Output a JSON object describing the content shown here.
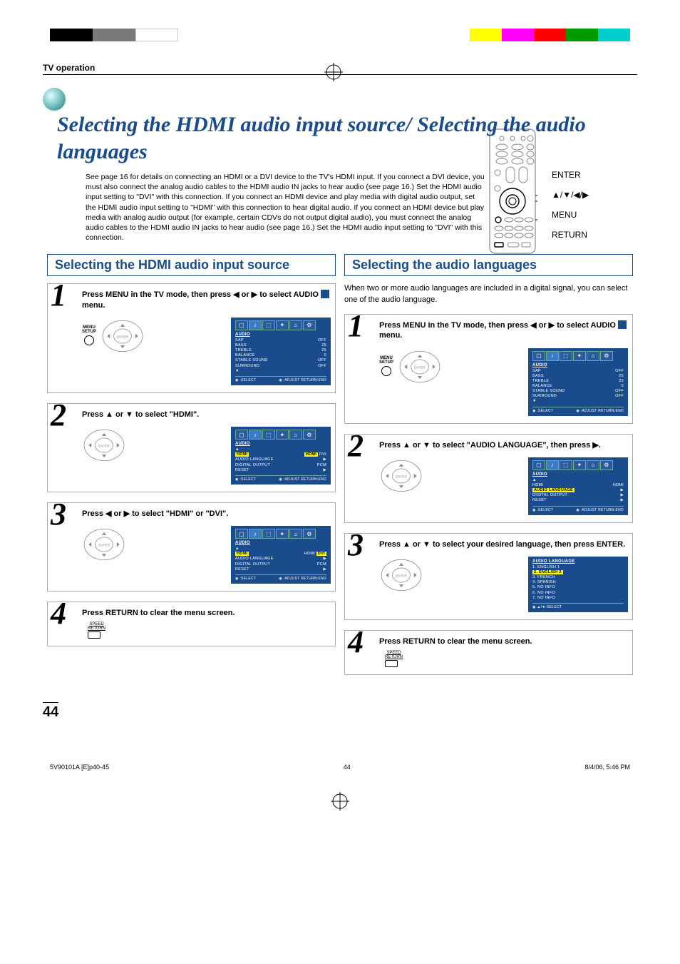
{
  "colors": {
    "accent": "#1a4b8c",
    "highlight": "#ffff00",
    "bar": [
      "#000000",
      "#7a7a7a",
      "#ffffff",
      "#ffffff",
      "#ffffff",
      "#ffffff",
      "#ffff00",
      "#ff00ff",
      "#ff0000",
      "#009900",
      "#00cccc"
    ]
  },
  "header": {
    "section": "TV operation"
  },
  "title": "Selecting the HDMI audio input source/ Selecting the audio languages",
  "intro": "See page 16 for details on connecting an HDMI or a DVI device to the TV's HDMI input. If you connect a DVI device, you must also connect the analog audio cables to the HDMI audio IN jacks to hear audio (see page 16.) Set the HDMI audio input setting to \"DVI\" with this connection. If you connect an HDMI device and play media with digital audio output, set the HDMI audio input setting to \"HDMI\" with this connection to hear digital audio. If you connect an HDMI device but play media with analog audio output (for example, certain CDVs do not output digital audio), you must connect the analog audio cables to the HDMI audio IN jacks to hear audio (see page 16.) Set the HDMI audio input setting to \"DVI\" with this connection.",
  "remote": {
    "labels": [
      "ENTER",
      "▲/▼/◀/▶",
      "MENU",
      "RETURN"
    ]
  },
  "left": {
    "title": "Selecting the HDMI audio input source",
    "steps": [
      {
        "n": "1",
        "text": "Press MENU in the TV mode, then press ◀ or ▶ to select AUDIO 🔊 menu.",
        "osd": {
          "header": "AUDIO",
          "rows": [
            [
              "SAP",
              "OFF"
            ],
            [
              "BASS",
              "25"
            ],
            [
              "TREBLE",
              "25"
            ],
            [
              "BALANCE",
              "0"
            ],
            [
              "STABLE SOUND",
              "OFF"
            ],
            [
              "SURROUND",
              "OFF"
            ],
            [
              "▼",
              ""
            ]
          ],
          "foot": [
            "◉ :SELECT",
            "◉ :ADJUST  RETURN:END"
          ]
        }
      },
      {
        "n": "2",
        "text": "Press ▲ or ▼ to select \"HDMI\".",
        "osd": {
          "header": "AUDIO",
          "rows": [
            [
              "▲",
              ""
            ],
            [
              "HDMI",
              "[HDMI] DVI"
            ],
            [
              "AUDIO LANGUAGE",
              "▶"
            ],
            [
              "DIGITAL OUTPUT",
              "PCM"
            ],
            [
              "",
              ""
            ],
            [
              "RESET",
              "▶"
            ]
          ],
          "foot": [
            "◉ :SELECT",
            "◉ :ADJUST  RETURN:END"
          ],
          "sel_idx": 1
        }
      },
      {
        "n": "3",
        "text": "Press ◀ or ▶ to select \"HDMI\" or \"DVI\".",
        "osd": {
          "header": "AUDIO",
          "rows": [
            [
              "▲",
              ""
            ],
            [
              "HDMI",
              "HDMI [DVI]"
            ],
            [
              "AUDIO LANGUAGE",
              "▶"
            ],
            [
              "DIGITAL OUTPUT",
              "PCM"
            ],
            [
              "",
              ""
            ],
            [
              "RESET",
              "▶"
            ]
          ],
          "foot": [
            "◉ :SELECT",
            "◉ :ADJUST  RETURN:END"
          ],
          "sel_idx": 1,
          "sel_val": "DVI"
        }
      },
      {
        "n": "4",
        "text": "Press RETURN to clear the menu screen.",
        "return_btn": true
      }
    ]
  },
  "right": {
    "title": "Selecting the audio languages",
    "intro": "When two or more audio languages are included in a digital signal, you can select one of the audio language.",
    "steps": [
      {
        "n": "1",
        "text": "Press MENU in the TV mode, then press ◀ or ▶ to select AUDIO 🔊 menu.",
        "osd": {
          "header": "AUDIO",
          "rows": [
            [
              "SAP",
              "OFF"
            ],
            [
              "BASS",
              "25"
            ],
            [
              "TREBLE",
              "25"
            ],
            [
              "BALANCE",
              "0"
            ],
            [
              "STABLE SOUND",
              "OFF"
            ],
            [
              "SURROUND",
              "OFF"
            ],
            [
              "▼",
              ""
            ]
          ],
          "foot": [
            "◉ :SELECT",
            "◉ :ADJUST  RETURN:END"
          ]
        }
      },
      {
        "n": "2",
        "text": "Press ▲ or ▼ to select \"AUDIO LANGUAGE\", then press ▶.",
        "osd": {
          "header": "AUDIO",
          "rows": [
            [
              "▲",
              ""
            ],
            [
              "HDMI",
              "HDMI"
            ],
            [
              "AUDIO LANGUAGE",
              "▶"
            ],
            [
              "DIGITAL OUTPUT",
              "▶"
            ],
            [
              "",
              ""
            ],
            [
              "RESET",
              "▶"
            ]
          ],
          "foot": [
            "◉ :SELECT",
            "◉ :ADJUST  RETURN:END"
          ],
          "sel_idx": 2
        }
      },
      {
        "n": "3",
        "text": "Press ▲ or ▼ to select your desired language, then press ENTER.",
        "osd": {
          "header": "AUDIO LANGUAGE",
          "rows": [
            [
              "1. ENGLISH 1",
              ""
            ],
            [
              "2. ENGLISH 2",
              ""
            ],
            [
              "3. FRENCH",
              ""
            ],
            [
              "4. SPANISH",
              ""
            ],
            [
              "5. NO INFO",
              ""
            ],
            [
              "6. NO INFO",
              ""
            ],
            [
              "7. NO INFO",
              ""
            ]
          ],
          "foot": [
            "◉ ▲/▼:SELECT",
            ""
          ],
          "sel_idx": 1,
          "lang_list": true
        }
      },
      {
        "n": "4",
        "text": "Press RETURN to clear the menu screen.",
        "return_btn": true
      }
    ]
  },
  "page_number": "44",
  "footer": {
    "left": "5V90101A [E]p40-45",
    "mid": "44",
    "right": "8/4/06, 5:46 PM"
  }
}
